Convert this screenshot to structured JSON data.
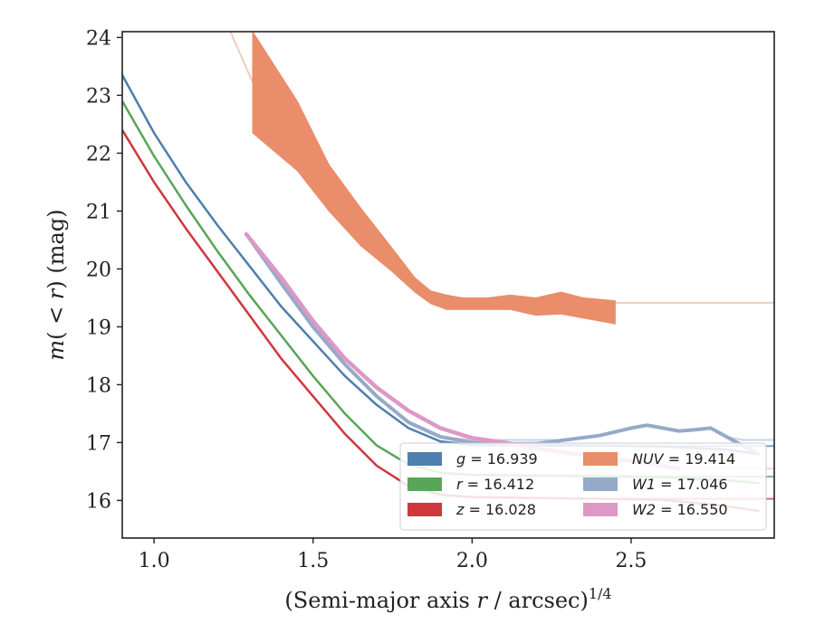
{
  "chart_data": {
    "type": "line",
    "title": "",
    "xlabel": "(Semi-major axis r / arcsec)",
    "xlabel_parts": {
      "pre": "(Semi-major axis ",
      "var": "r",
      "post": " / arcsec)",
      "sup": "1/4"
    },
    "ylabel_parts": {
      "m": "m",
      "open": "(",
      "lt": " < ",
      "r": "r",
      "close": ")",
      "unit": " (mag)"
    },
    "xlim": [
      0.9,
      2.95
    ],
    "ylim": [
      24.1,
      15.35
    ],
    "y_inverted": true,
    "xticks": [
      "1.0",
      "1.5",
      "2.0",
      "2.5"
    ],
    "xtick_values": [
      1.0,
      1.5,
      2.0,
      2.5
    ],
    "yticks": [
      "16",
      "17",
      "18",
      "19",
      "20",
      "21",
      "22",
      "23",
      "24"
    ],
    "ytick_values": [
      16,
      17,
      18,
      19,
      20,
      21,
      22,
      23,
      24
    ],
    "grid": false,
    "legend_position": "lower-right",
    "legend": [
      {
        "band": "g",
        "value": "16.939",
        "color": "#4f7fae"
      },
      {
        "band": "r",
        "value": "16.412",
        "color": "#5aa557"
      },
      {
        "band": "z",
        "value": "16.028",
        "color": "#d0373d"
      },
      {
        "band": "NUV",
        "value": "19.414",
        "color": "#e98d6b"
      },
      {
        "band": "W1",
        "value": "17.046",
        "color": "#96a9c9"
      },
      {
        "band": "W2",
        "value": "16.550",
        "color": "#dd98c6"
      }
    ],
    "series": [
      {
        "name": "g",
        "color": "#4f7fae",
        "width": 2.5,
        "model_color": "#4f7fae",
        "model_value": 16.939,
        "x": [
          0.9,
          1.0,
          1.1,
          1.2,
          1.3,
          1.4,
          1.5,
          1.6,
          1.7,
          1.8,
          1.9,
          2.0,
          2.2,
          2.4,
          2.6,
          2.8,
          2.9
        ],
        "y": [
          23.35,
          22.35,
          21.5,
          20.75,
          20.05,
          19.35,
          18.75,
          18.15,
          17.65,
          17.25,
          17.02,
          16.96,
          16.95,
          16.95,
          16.93,
          16.88,
          16.8
        ]
      },
      {
        "name": "r",
        "color": "#5aa557",
        "width": 2.5,
        "model_color": "#5aa557",
        "model_value": 16.412,
        "x": [
          0.9,
          1.0,
          1.1,
          1.2,
          1.3,
          1.4,
          1.5,
          1.6,
          1.7,
          1.8,
          1.9,
          2.0,
          2.2,
          2.4,
          2.6,
          2.8,
          2.9
        ],
        "y": [
          22.9,
          21.95,
          21.1,
          20.3,
          19.55,
          18.85,
          18.15,
          17.5,
          16.95,
          16.62,
          16.48,
          16.44,
          16.43,
          16.42,
          16.4,
          16.35,
          16.3
        ]
      },
      {
        "name": "z",
        "color": "#d0373d",
        "width": 2.5,
        "model_color": "#d0373d",
        "model_value": 16.028,
        "x": [
          0.9,
          1.0,
          1.1,
          1.2,
          1.3,
          1.4,
          1.5,
          1.6,
          1.7,
          1.8,
          1.9,
          2.0,
          2.2,
          2.4,
          2.6,
          2.7,
          2.8,
          2.9
        ],
        "y": [
          22.4,
          21.5,
          20.7,
          19.95,
          19.2,
          18.45,
          17.8,
          17.15,
          16.6,
          16.25,
          16.1,
          16.06,
          16.04,
          16.03,
          16.01,
          15.96,
          15.9,
          15.82
        ]
      },
      {
        "name": "NUV",
        "color": "#e98d6b",
        "band": true,
        "model_color": "#eebaa5",
        "model_value": 19.414,
        "x": [
          1.31,
          1.45,
          1.55,
          1.65,
          1.75,
          1.82,
          1.87,
          1.92,
          1.97,
          2.05,
          2.12,
          2.2,
          2.28,
          2.35,
          2.45
        ],
        "y_low": [
          24.1,
          22.9,
          21.8,
          21.05,
          20.35,
          19.85,
          19.62,
          19.55,
          19.5,
          19.5,
          19.55,
          19.5,
          19.6,
          19.5,
          19.45
        ],
        "y_high": [
          22.35,
          21.7,
          21.0,
          20.4,
          19.95,
          19.6,
          19.4,
          19.3,
          19.3,
          19.3,
          19.3,
          19.2,
          19.22,
          19.15,
          19.05
        ]
      },
      {
        "name": "W1",
        "color": "#96a9c9",
        "width": 4,
        "model_color": "#b8c4da",
        "model_value": 17.046,
        "x": [
          1.29,
          1.4,
          1.5,
          1.6,
          1.7,
          1.8,
          1.9,
          2.0,
          2.1,
          2.2,
          2.3,
          2.4,
          2.5,
          2.55,
          2.6,
          2.65,
          2.7,
          2.75,
          2.8,
          2.85,
          2.9
        ],
        "y": [
          20.6,
          19.75,
          19.0,
          18.35,
          17.8,
          17.35,
          17.1,
          17.0,
          16.98,
          16.98,
          17.05,
          17.12,
          17.25,
          17.3,
          17.25,
          17.2,
          17.22,
          17.25,
          17.1,
          16.95,
          16.8
        ]
      },
      {
        "name": "W2",
        "color": "#dd98c6",
        "width": 4.5,
        "model_color": "#eac3dd",
        "model_value": 16.55,
        "x": [
          1.29,
          1.4,
          1.5,
          1.6,
          1.7,
          1.8,
          1.9,
          2.0,
          2.1,
          2.2,
          2.3,
          2.4,
          2.5,
          2.6,
          2.65
        ],
        "y": [
          20.6,
          19.85,
          19.1,
          18.45,
          17.95,
          17.55,
          17.25,
          17.08,
          17.0,
          16.9,
          16.82,
          16.75,
          16.68,
          16.6,
          16.55
        ]
      }
    ]
  }
}
